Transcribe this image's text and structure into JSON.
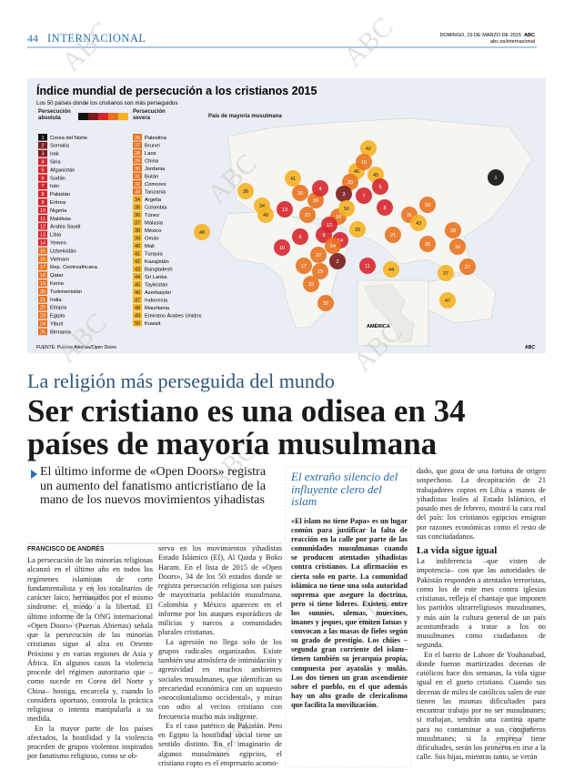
{
  "header": {
    "page": "44",
    "section": "INTERNACIONAL",
    "date": "DOMINGO, 29 DE MARZO DE 2015",
    "brand": "ABC",
    "url": "abc.es/internacional"
  },
  "infographic": {
    "title": "Índice mundial de persecución a los cristianos 2015",
    "subtitle": "Los 50 países donde los cristianos son más perseguidos",
    "legend": {
      "absolute": "Persecución absoluta",
      "severe": "Persecución severa",
      "muslim": "País de mayoría musulmana",
      "colors": [
        "#111111",
        "#7b1c1c",
        "#d7262e",
        "#e9731f",
        "#f5b324"
      ]
    },
    "countries": [
      {
        "rank": 1,
        "name": "Corea del Norte",
        "color": "#111111",
        "muslim": false
      },
      {
        "rank": 2,
        "name": "Somalia",
        "color": "#7b1c1c",
        "muslim": true
      },
      {
        "rank": 3,
        "name": "Irak",
        "color": "#7b1c1c",
        "muslim": true
      },
      {
        "rank": 4,
        "name": "Siria",
        "color": "#d7262e",
        "muslim": true
      },
      {
        "rank": 5,
        "name": "Afganistán",
        "color": "#d7262e",
        "muslim": true
      },
      {
        "rank": 6,
        "name": "Sudán",
        "color": "#d7262e",
        "muslim": true
      },
      {
        "rank": 7,
        "name": "Irán",
        "color": "#d7262e",
        "muslim": true
      },
      {
        "rank": 8,
        "name": "Pakistán",
        "color": "#d7262e",
        "muslim": true
      },
      {
        "rank": 9,
        "name": "Eritrea",
        "color": "#d7262e",
        "muslim": false
      },
      {
        "rank": 10,
        "name": "Nigeria",
        "color": "#d7262e",
        "muslim": false
      },
      {
        "rank": 11,
        "name": "Maldivas",
        "color": "#d7262e",
        "muslim": true
      },
      {
        "rank": 12,
        "name": "Arabia Saudí",
        "color": "#d7262e",
        "muslim": true
      },
      {
        "rank": 13,
        "name": "Libia",
        "color": "#d7262e",
        "muslim": true
      },
      {
        "rank": 14,
        "name": "Yemen",
        "color": "#d7262e",
        "muslim": true
      },
      {
        "rank": 15,
        "name": "Uzbekistán",
        "color": "#e9731f",
        "muslim": true
      },
      {
        "rank": 16,
        "name": "Vietnam",
        "color": "#e9731f",
        "muslim": false
      },
      {
        "rank": 17,
        "name": "Rep. Centroafricana",
        "color": "#e9731f",
        "muslim": false
      },
      {
        "rank": 18,
        "name": "Qatar",
        "color": "#e9731f",
        "muslim": true
      },
      {
        "rank": 19,
        "name": "Kenia",
        "color": "#e9731f",
        "muslim": false
      },
      {
        "rank": 20,
        "name": "Turkmenistán",
        "color": "#e9731f",
        "muslim": true
      },
      {
        "rank": 21,
        "name": "India",
        "color": "#e9731f",
        "muslim": false
      },
      {
        "rank": 22,
        "name": "Etiopía",
        "color": "#e9731f",
        "muslim": false
      },
      {
        "rank": 23,
        "name": "Egipto",
        "color": "#e9731f",
        "muslim": true
      },
      {
        "rank": 24,
        "name": "Yibutí",
        "color": "#e9731f",
        "muslim": true
      },
      {
        "rank": 25,
        "name": "Birmania",
        "color": "#e9731f",
        "muslim": false
      },
      {
        "rank": 26,
        "name": "Palestina",
        "color": "#e9731f",
        "muslim": true
      },
      {
        "rank": 27,
        "name": "Brunei",
        "color": "#e9731f",
        "muslim": true
      },
      {
        "rank": 28,
        "name": "Laos",
        "color": "#e9731f",
        "muslim": false
      },
      {
        "rank": 29,
        "name": "China",
        "color": "#e9731f",
        "muslim": false
      },
      {
        "rank": 30,
        "name": "Jordania",
        "color": "#e9731f",
        "muslim": true
      },
      {
        "rank": 31,
        "name": "Bután",
        "color": "#e9731f",
        "muslim": false
      },
      {
        "rank": 32,
        "name": "Comores",
        "color": "#e9731f",
        "muslim": true
      },
      {
        "rank": 33,
        "name": "Tanzania",
        "color": "#e9731f",
        "muslim": false
      },
      {
        "rank": 34,
        "name": "Argelia",
        "color": "#f5b324",
        "muslim": true
      },
      {
        "rank": 35,
        "name": "Colombia",
        "color": "#f5b324",
        "muslim": false
      },
      {
        "rank": 36,
        "name": "Túnez",
        "color": "#f5b324",
        "muslim": true
      },
      {
        "rank": 37,
        "name": "Malasia",
        "color": "#f5b324",
        "muslim": true
      },
      {
        "rank": 38,
        "name": "México",
        "color": "#f5b324",
        "muslim": false
      },
      {
        "rank": 39,
        "name": "Omán",
        "color": "#f5b324",
        "muslim": true
      },
      {
        "rank": 40,
        "name": "Mali",
        "color": "#f5b324",
        "muslim": true
      },
      {
        "rank": 41,
        "name": "Turquía",
        "color": "#f5b324",
        "muslim": true
      },
      {
        "rank": 42,
        "name": "Kazajistán",
        "color": "#f5b324",
        "muslim": true
      },
      {
        "rank": 43,
        "name": "Bangladesh",
        "color": "#f5b324",
        "muslim": true
      },
      {
        "rank": 44,
        "name": "Sri Lanka",
        "color": "#f5b324",
        "muslim": false
      },
      {
        "rank": 45,
        "name": "Tayikistán",
        "color": "#f5b324",
        "muslim": true
      },
      {
        "rank": 46,
        "name": "Azerbaiyán",
        "color": "#f5b324",
        "muslim": true
      },
      {
        "rank": 47,
        "name": "Indonesia",
        "color": "#f5b324",
        "muslim": true
      },
      {
        "rank": 48,
        "name": "Mauritania",
        "color": "#f5b324",
        "muslim": true
      },
      {
        "rank": 49,
        "name": "Emiratos Árabes Unidos",
        "color": "#f5b324",
        "muslim": true
      },
      {
        "rank": 50,
        "name": "Kuwait",
        "color": "#f5b324",
        "muslim": true
      }
    ],
    "map_labels": [
      42,
      41,
      46,
      45,
      15,
      20,
      5,
      29,
      1,
      36,
      34,
      13,
      26,
      30,
      4,
      3,
      7,
      8,
      31,
      18,
      12,
      50,
      39,
      14,
      40,
      23,
      48,
      6,
      9,
      24,
      22,
      2,
      10,
      17,
      19,
      33,
      32,
      21,
      25,
      28,
      16,
      11,
      44,
      43,
      27,
      37,
      47,
      38,
      35
    ],
    "inset": "AMÉRICA",
    "source": "FUENTE: Puertas Abiertas/Open Doors",
    "credit": "ABC"
  },
  "watermark": "ABC",
  "article": {
    "kicker": "La religión más perseguida del mundo",
    "headline": [
      "Ser cristiano es una odisea en 34",
      "países de mayoría musulmana"
    ],
    "summary": "El último informe de «Open Doors» registra un aumento del fanatismo anticristiano de la mano de los nuevos movimientos yihadistas",
    "byline": "FRANCISCO DE ANDRÉS",
    "col1": [
      "La persecución de las minorías religiosas alcanzó en el último año en todos los regímenes islamistas de corte fundamentalista y en los totalitarios de carácter laico, hermanados por el mismo síndrome: el miedo a la libertad. El último informe de la ONG internacional «Open Doors» (Puertas Abiertas) señala que la persecución de las minorías cristianas sigue al alza en Oriente Próximo y en varias regiones de Asia y África. En algunos casos la violencia procede del régimen autoritario que –como sucede en Corea del Norte y China– hostiga, encarcela y, cuando lo considera oportuno, controla la práctica religiosa o intenta manipularla a su medida.",
      "En la mayor parte de los países afectados, la hostilidad y la violencia proceden de grupos violentos inspirados por fanatismo religioso, como se ob-"
    ],
    "col2": [
      "serva en los movimientos yihadistas Estado Islámico (EI), Al Qaida y Boko Haram. En el lista de 2015 de «Open Doors», 34 de los 50 estados donde se registra persecución religiosa son países de mayoritaria población musulmana. Colombia y México aparecen en el informe por los ataques esporádicos de milicias y narcos a comunidades plurales cristianas.",
      "La agresión no llega solo de los grupos radicales organizados. Existe también una atmósfera de intimidación y agresividad en muchos ambientes sociales musulmanes, que identifican su precariedad económica con un supuesto «neocolonialismo occidental», y miran con odio al vecino cristiano con frecuencia mucho más indigente.",
      "Es el caso patético de Pakistán. Pero en Egipto la hostilidad social tiene un sentido distinto. En el imaginario de algunos musulmanes egipcios, el cristiano copto es el empresario acomo-"
    ],
    "sidebar": {
      "title": "El extraño silencio del influyente clero del islam",
      "text": "«El islam no tiene Papa» es un lugar común para justificar la falta de reacción en la calle por parte de las comunidades musulmanas cuando se producen atentados yihadistas contra cristianos. La afirmación es cierta solo en parte. La comunidad islámica no tiene una sola autoridad suprema que asegure la doctrina, pero sí tiene líderes. Existen, entre los sunníes, ulemas, muecines, imanes y jeques, que emiten fatuas y convocan a las masas de fieles según su grado de prestigio. Los chiíes –segunda gran corriente del islam– tienen también su jerarquía propia, compuesta por ayatolás y mulás. Los dos tienen un gran ascendiente sobre el pueblo, en el que además hay un alto grado de clericalismo que facilita la movilización."
    },
    "col3": [
      "dado, que goza de una fortuna de origen sospechoso. La decapitación de 21 trabajadores coptos en Libia a manos de yihadistas leales al Estado Islámico, el pasado mes de febrero, mostró la cara real del país: los cristianos egipcios emigran por razones económicas como el resto de sus conciudadanos."
    ],
    "subheading": "La vida sigue igual",
    "col3b": [
      "La indiferencia –que visten de impotencia– con que las autoridades de Pakistán responden a atentados terroristas, como los de este mes contra iglesias cristianas, refleja el chantaje que imponen los partidos ultrarreligiosos musulmanes, y más aún la cultura general de un país acostumbrado a tratar a los no musulmanes como ciudadanos de segunda.",
      "En el barrio de Lahore de Youhanabad, donde fueron martirizados decenas de católicos hace dos semanas, la vida sigue igual en el gueto cristiano. Cuando sus decenas de miles de católicos salen de este tienen las mismas dificultades para encontrar trabajo por no ser musulmanes; si trabajan, tendrán una cantina aparte para no contaminar a sus compañeros musulmanes; si la empresa tiene dificultades, serán los primeros en irse a la calle. Sus hijas, mientras tanto, se verán"
    ]
  }
}
